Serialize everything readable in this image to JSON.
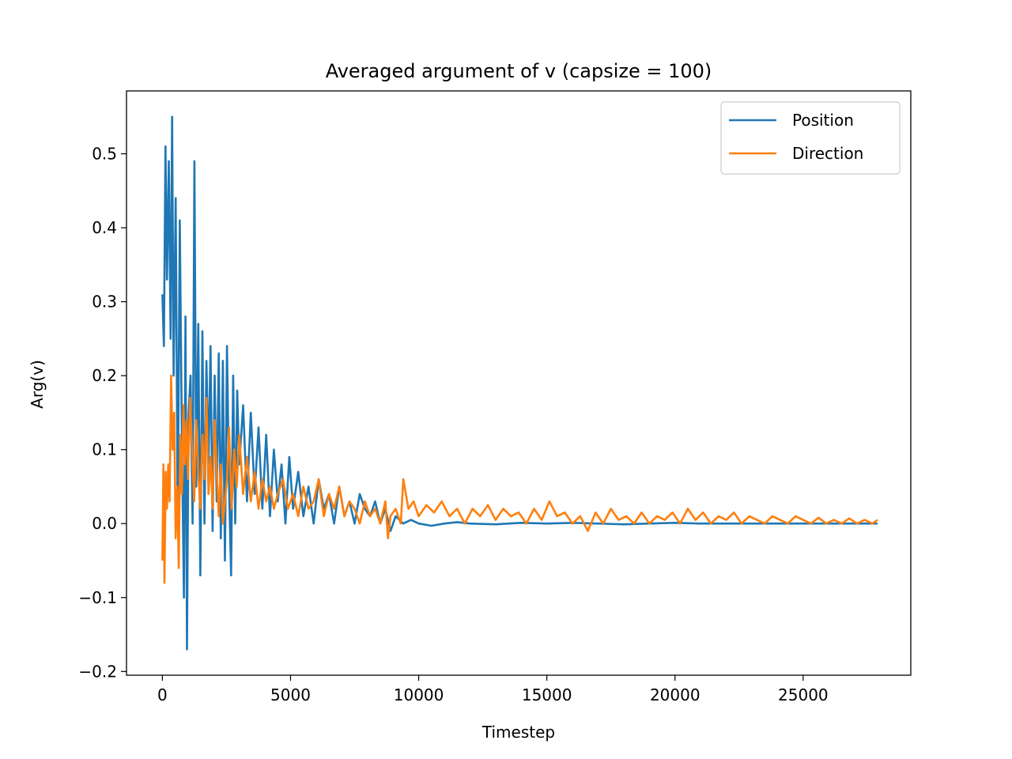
{
  "chart_data": {
    "type": "line",
    "title": "Averaged argument of v (capsize = 100)",
    "xlabel": "Timestep",
    "ylabel": "Arg(v)",
    "xlim": [
      -1400,
      29200
    ],
    "ylim": [
      -0.205,
      0.585
    ],
    "xticks": [
      0,
      5000,
      10000,
      15000,
      20000,
      25000
    ],
    "xtick_labels": [
      "0",
      "5000",
      "10000",
      "15000",
      "20000",
      "25000"
    ],
    "yticks": [
      -0.2,
      -0.1,
      0.0,
      0.1,
      0.2,
      0.3,
      0.4,
      0.5
    ],
    "ytick_labels": [
      "−0.2",
      "−0.1",
      "0.0",
      "0.1",
      "0.2",
      "0.3",
      "0.4",
      "0.5"
    ],
    "grid": false,
    "legend_position": "top-right",
    "series": [
      {
        "name": "Position",
        "color": "#1f77b4",
        "x": [
          0,
          60,
          120,
          180,
          250,
          320,
          380,
          440,
          520,
          600,
          680,
          760,
          840,
          900,
          960,
          1020,
          1100,
          1180,
          1250,
          1320,
          1400,
          1480,
          1560,
          1640,
          1720,
          1800,
          1880,
          1960,
          2040,
          2120,
          2200,
          2280,
          2360,
          2440,
          2520,
          2600,
          2680,
          2760,
          2840,
          2920,
          3000,
          3150,
          3300,
          3450,
          3600,
          3750,
          3900,
          4050,
          4200,
          4350,
          4500,
          4650,
          4800,
          4950,
          5100,
          5300,
          5500,
          5700,
          5900,
          6100,
          6300,
          6500,
          6700,
          6900,
          7100,
          7300,
          7500,
          7700,
          7900,
          8100,
          8300,
          8500,
          8700,
          8900,
          9100,
          9400,
          9700,
          10000,
          10500,
          11000,
          11500,
          12000,
          13000,
          14000,
          15000,
          16000,
          17000,
          18000,
          19000,
          20000,
          21000,
          22000,
          23000,
          24000,
          25000,
          26000,
          27000,
          27900
        ],
        "y": [
          0.31,
          0.24,
          0.51,
          0.33,
          0.49,
          0.25,
          0.55,
          0.2,
          0.44,
          0.0,
          0.41,
          0.12,
          -0.1,
          0.28,
          -0.17,
          0.15,
          0.2,
          0.0,
          0.49,
          0.05,
          0.27,
          -0.07,
          0.26,
          0.0,
          0.22,
          0.08,
          0.24,
          -0.01,
          0.2,
          0.03,
          0.23,
          -0.02,
          0.22,
          -0.05,
          0.24,
          0.05,
          -0.07,
          0.2,
          0.0,
          0.18,
          0.08,
          0.16,
          0.03,
          0.15,
          0.04,
          0.13,
          0.02,
          0.12,
          0.01,
          0.1,
          0.03,
          0.08,
          0.0,
          0.09,
          0.02,
          0.07,
          0.01,
          0.05,
          0.0,
          0.06,
          0.02,
          0.04,
          0.0,
          0.05,
          0.01,
          0.03,
          0.0,
          0.04,
          0.02,
          0.01,
          0.03,
          0.0,
          0.02,
          -0.01,
          0.01,
          0.0,
          0.005,
          0.0,
          -0.003,
          0.0,
          0.002,
          0.0,
          -0.001,
          0.001,
          0.0,
          0.001,
          0.0,
          -0.001,
          0.0,
          0.001,
          0.0,
          0.0,
          0.0,
          0.0,
          0.0,
          0.0,
          0.0,
          0.0
        ]
      },
      {
        "name": "Direction",
        "color": "#ff7f0e",
        "x": [
          0,
          40,
          80,
          130,
          180,
          230,
          280,
          340,
          400,
          460,
          520,
          580,
          640,
          700,
          760,
          820,
          880,
          940,
          1000,
          1080,
          1160,
          1240,
          1320,
          1400,
          1480,
          1560,
          1640,
          1720,
          1800,
          1880,
          1960,
          2040,
          2120,
          2200,
          2280,
          2360,
          2440,
          2520,
          2600,
          2700,
          2800,
          2900,
          3000,
          3150,
          3300,
          3450,
          3600,
          3750,
          3900,
          4050,
          4200,
          4350,
          4500,
          4700,
          4900,
          5100,
          5300,
          5500,
          5700,
          5900,
          6100,
          6300,
          6500,
          6700,
          6900,
          7100,
          7300,
          7500,
          7700,
          7900,
          8100,
          8300,
          8500,
          8700,
          8800,
          8900,
          9100,
          9300,
          9400,
          9600,
          9800,
          10000,
          10300,
          10600,
          10900,
          11200,
          11500,
          11800,
          12100,
          12400,
          12700,
          13000,
          13300,
          13600,
          13900,
          14200,
          14500,
          14800,
          15100,
          15400,
          15700,
          16000,
          16300,
          16600,
          16900,
          17200,
          17500,
          17800,
          18100,
          18400,
          18700,
          19000,
          19300,
          19600,
          19900,
          20200,
          20500,
          20800,
          21100,
          21400,
          21700,
          22000,
          22300,
          22600,
          22900,
          23200,
          23500,
          23800,
          24100,
          24400,
          24700,
          25000,
          25300,
          25600,
          25900,
          26200,
          26500,
          26800,
          27100,
          27400,
          27700,
          27900
        ],
        "y": [
          -0.05,
          0.08,
          -0.08,
          0.07,
          0.02,
          0.08,
          0.03,
          0.2,
          0.1,
          0.15,
          -0.02,
          0.05,
          -0.06,
          0.12,
          0.04,
          0.16,
          0.08,
          0.14,
          0.06,
          0.17,
          0.1,
          0.03,
          0.14,
          0.07,
          0.02,
          0.12,
          0.06,
          0.17,
          0.04,
          0.09,
          0.02,
          0.14,
          0.07,
          0.01,
          0.08,
          0.0,
          0.03,
          0.06,
          0.13,
          0.02,
          0.1,
          0.05,
          0.12,
          0.04,
          0.09,
          0.03,
          0.07,
          0.02,
          0.06,
          0.03,
          0.05,
          0.02,
          0.04,
          0.06,
          0.02,
          0.04,
          0.01,
          0.05,
          0.02,
          0.03,
          0.06,
          0.01,
          0.04,
          0.02,
          0.05,
          0.01,
          0.03,
          0.02,
          0.0,
          0.03,
          0.01,
          0.02,
          0.0,
          0.03,
          -0.02,
          0.01,
          0.02,
          0.0,
          0.06,
          0.02,
          0.03,
          0.01,
          0.025,
          0.015,
          0.03,
          0.01,
          0.02,
          0.0,
          0.02,
          0.01,
          0.025,
          0.005,
          0.02,
          0.01,
          0.015,
          0.0,
          0.02,
          0.005,
          0.03,
          0.01,
          0.015,
          0.0,
          0.01,
          -0.01,
          0.015,
          0.0,
          0.02,
          0.005,
          0.01,
          0.0,
          0.015,
          0.0,
          0.01,
          0.005,
          0.015,
          0.0,
          0.02,
          0.005,
          0.015,
          0.0,
          0.01,
          0.005,
          0.015,
          0.0,
          0.01,
          0.005,
          0.0,
          0.01,
          0.005,
          0.0,
          0.01,
          0.005,
          0.0,
          0.008,
          0.0,
          0.005,
          0.0,
          0.007,
          0.0,
          0.005,
          0.0,
          0.005
        ]
      }
    ]
  }
}
